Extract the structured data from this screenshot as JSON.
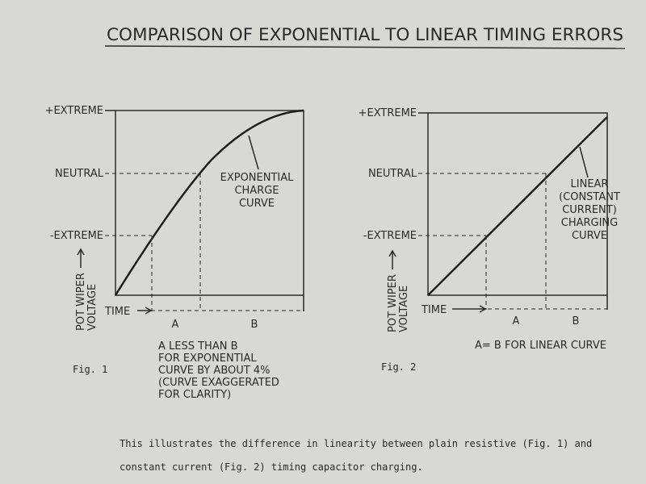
{
  "title": "COMPARISON OF EXPONENTIAL TO LINEAR TIMING ERRORS",
  "fig1": {
    "levels": [
      "+EXTREME",
      "NEUTRAL",
      "-EXTREME"
    ],
    "y_axis_label": [
      "POT WIPER",
      "VOLTAGE"
    ],
    "time_label": "TIME",
    "segments": [
      "A",
      "B"
    ],
    "curve_label": [
      "EXPONENTIAL",
      "CHARGE",
      "CURVE"
    ],
    "caption": [
      "A  LESS THAN B",
      "FOR EXPONENTIAL",
      "CURVE BY ABOUT 4%",
      "(CURVE EXAGGERATED",
      "FOR CLARITY)"
    ],
    "fig_label": "Fig. 1"
  },
  "fig2": {
    "levels": [
      "+EXTREME",
      "NEUTRAL",
      "-EXTREME"
    ],
    "y_axis_label": [
      "POT WIPER",
      "VOLTAGE"
    ],
    "time_label": "TIME",
    "segments": [
      "A",
      "B"
    ],
    "curve_label": [
      "LINEAR",
      "(CONSTANT",
      "CURRENT)",
      "CHARGING",
      "CURVE"
    ],
    "caption": [
      "A= B FOR LINEAR CURVE"
    ],
    "fig_label": "Fig. 2"
  },
  "description": [
    "This illustrates the difference in linearity between plain resistive (Fig. 1) and",
    "constant current (Fig. 2) timing capacitor charging."
  ]
}
